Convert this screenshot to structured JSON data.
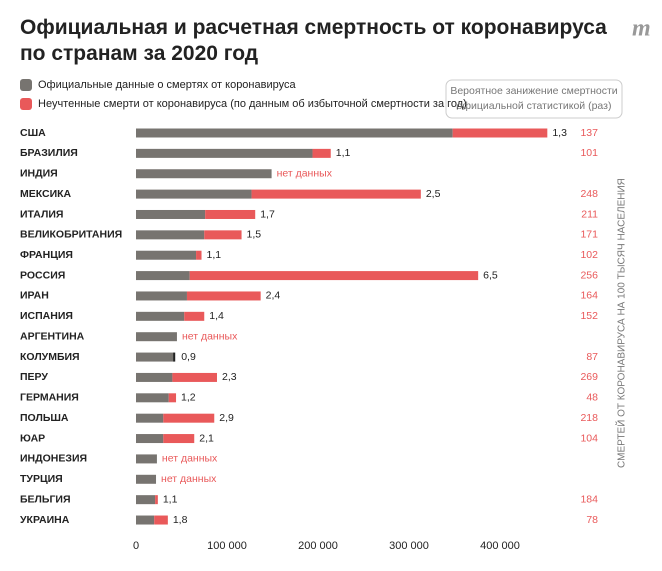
{
  "chart_data": {
    "type": "stacked-bar-horizontal",
    "title": "Официальная и расчетная смертность от коронавируса по странам за 2020 год",
    "logo": "m",
    "categories": [
      "США",
      "БРАЗИЛИЯ",
      "ИНДИЯ",
      "МЕКСИКА",
      "ИТАЛИЯ",
      "ВЕЛИКОБРИТАНИЯ",
      "ФРАНЦИЯ",
      "РОССИЯ",
      "ИРАН",
      "ИСПАНИЯ",
      "АРГЕНТИНА",
      "КОЛУМБИЯ",
      "ПЕРУ",
      "ГЕРМАНИЯ",
      "ПОЛЬША",
      "ЮАР",
      "ИНДОНЕЗИЯ",
      "ТУРЦИЯ",
      "БЕЛЬГИЯ",
      "УКРАИНА"
    ],
    "series": [
      {
        "name": "Официальные данные о смертях от коронавируса",
        "color": "#777470",
        "values": [
          348000,
          194000,
          149000,
          127000,
          76000,
          75000,
          66000,
          59000,
          56000,
          53000,
          45000,
          42000,
          40000,
          36000,
          30000,
          30000,
          23000,
          22000,
          21000,
          20000
        ]
      },
      {
        "name": "Неучтенные смерти от коронавируса (по данным об избыточной смертности за год)",
        "color": "#e9595a",
        "values": [
          104000,
          20000,
          null,
          186000,
          55000,
          41000,
          6000,
          317000,
          81000,
          22000,
          null,
          0,
          49000,
          8000,
          56000,
          34000,
          null,
          null,
          3000,
          15000
        ]
      }
    ],
    "ratios": {
      "title": "Вероятное занижение смертности официальной статистикой (раз)",
      "values": [
        1.3,
        1.1,
        null,
        2.5,
        1.7,
        1.5,
        1.1,
        6.5,
        2.4,
        1.4,
        null,
        0.9,
        2.3,
        1.2,
        2.9,
        2.1,
        null,
        null,
        1.1,
        1.8
      ],
      "value_labels": [
        "1,3",
        "1,1",
        null,
        "2,5",
        "1,7",
        "1,5",
        "1,1",
        "6,5",
        "2,4",
        "1,4",
        null,
        "0,9",
        "2,3",
        "1,2",
        "2,9",
        "2,1",
        null,
        null,
        "1,1",
        "1,8"
      ],
      "no_data_label": "нет данных"
    },
    "per_100k": {
      "title": "СМЕРТЕЙ ОТ КОРОНАВИРУСА НА 100 ТЫСЯЧ НАСЕЛЕНИЯ",
      "values": [
        137,
        101,
        null,
        248,
        211,
        171,
        102,
        256,
        164,
        152,
        null,
        87,
        269,
        48,
        218,
        104,
        null,
        null,
        184,
        78
      ]
    },
    "xlim": [
      0,
      500000
    ],
    "xticks": [
      0,
      {
        "value": 100000,
        "label": "100 000"
      },
      {
        "value": 200000,
        "label": "200 000"
      },
      {
        "value": 300000,
        "label": "300 000"
      },
      {
        "value": 400000,
        "label": "400 000"
      }
    ]
  }
}
